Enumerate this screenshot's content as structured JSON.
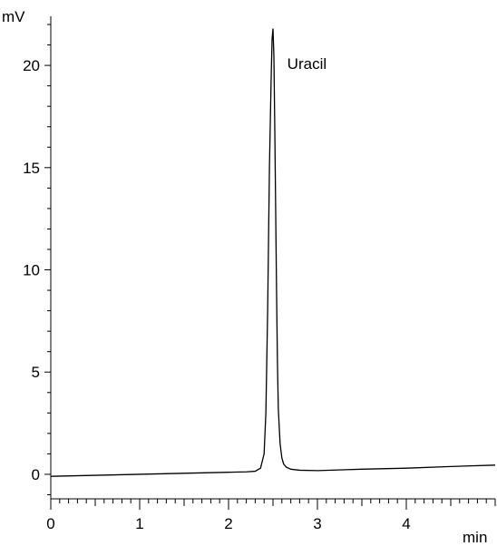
{
  "chart_data": {
    "type": "line",
    "title": "",
    "xlabel": "min",
    "ylabel": "mV",
    "xlim": [
      0,
      5
    ],
    "ylim": [
      -1.2,
      22.4
    ],
    "x_ticks": [
      0,
      1,
      2,
      3,
      4
    ],
    "x_tick_labels": [
      "0",
      "1",
      "2",
      "3",
      "4"
    ],
    "y_ticks": [
      0,
      5,
      10,
      15,
      20
    ],
    "y_tick_labels": [
      "0",
      "5",
      "10",
      "15",
      "20"
    ],
    "x_minor_step": 0.1,
    "y_minor_step": 1,
    "grid": false,
    "legend": "none",
    "line_color": "#000000",
    "series": [
      {
        "x": [
          0.0,
          0.5,
          1.0,
          1.5,
          2.0,
          2.2,
          2.3,
          2.36,
          2.4,
          2.42,
          2.44,
          2.46,
          2.48,
          2.49,
          2.5,
          2.51,
          2.52,
          2.53,
          2.54,
          2.55,
          2.56,
          2.58,
          2.6,
          2.62,
          2.65,
          2.7,
          2.8,
          3.0,
          3.5,
          4.0,
          4.5,
          5.0
        ],
        "y": [
          -0.1,
          -0.05,
          0.0,
          0.05,
          0.1,
          0.12,
          0.15,
          0.3,
          1.0,
          3.0,
          8.0,
          15.0,
          19.5,
          21.3,
          21.8,
          20.5,
          17.0,
          13.0,
          9.0,
          5.5,
          3.2,
          1.5,
          0.8,
          0.5,
          0.35,
          0.25,
          0.2,
          0.18,
          0.25,
          0.3,
          0.38,
          0.45
        ]
      }
    ],
    "annotations": [
      {
        "text": "Uracil",
        "x": 2.66,
        "y": 20.1
      }
    ]
  }
}
